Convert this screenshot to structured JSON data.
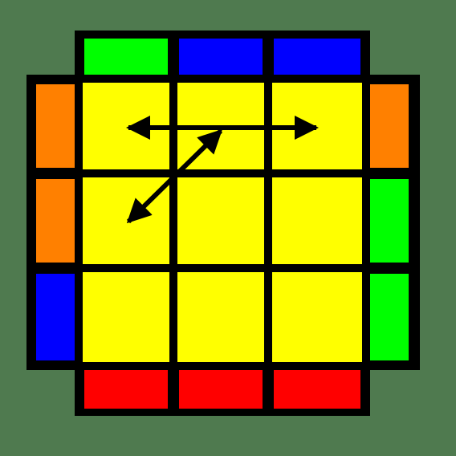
{
  "colors": {
    "background": "#4f7a4f",
    "outline": "#000000",
    "yellow": "#ffff00",
    "green": "#00ff00",
    "blue": "#0000ff",
    "orange": "#ff8000",
    "red": "#ff0000",
    "arrow": "#000000"
  },
  "top_face": [
    [
      "yellow",
      "yellow",
      "yellow"
    ],
    [
      "yellow",
      "yellow",
      "yellow"
    ],
    [
      "yellow",
      "yellow",
      "yellow"
    ]
  ],
  "side_stickers": {
    "back": [
      "green",
      "blue",
      "blue"
    ],
    "front": [
      "red",
      "red",
      "red"
    ],
    "left": [
      "orange",
      "orange",
      "blue"
    ],
    "right": [
      "orange",
      "green",
      "green"
    ]
  },
  "arrows": [
    {
      "name": "arrow-corner-swap-horizontal",
      "from": "top-left",
      "to": "top-right",
      "heads": "both"
    },
    {
      "name": "arrow-corner-swap-diagonal",
      "from": "top-center",
      "to": "middle-left",
      "heads": "both"
    }
  ]
}
